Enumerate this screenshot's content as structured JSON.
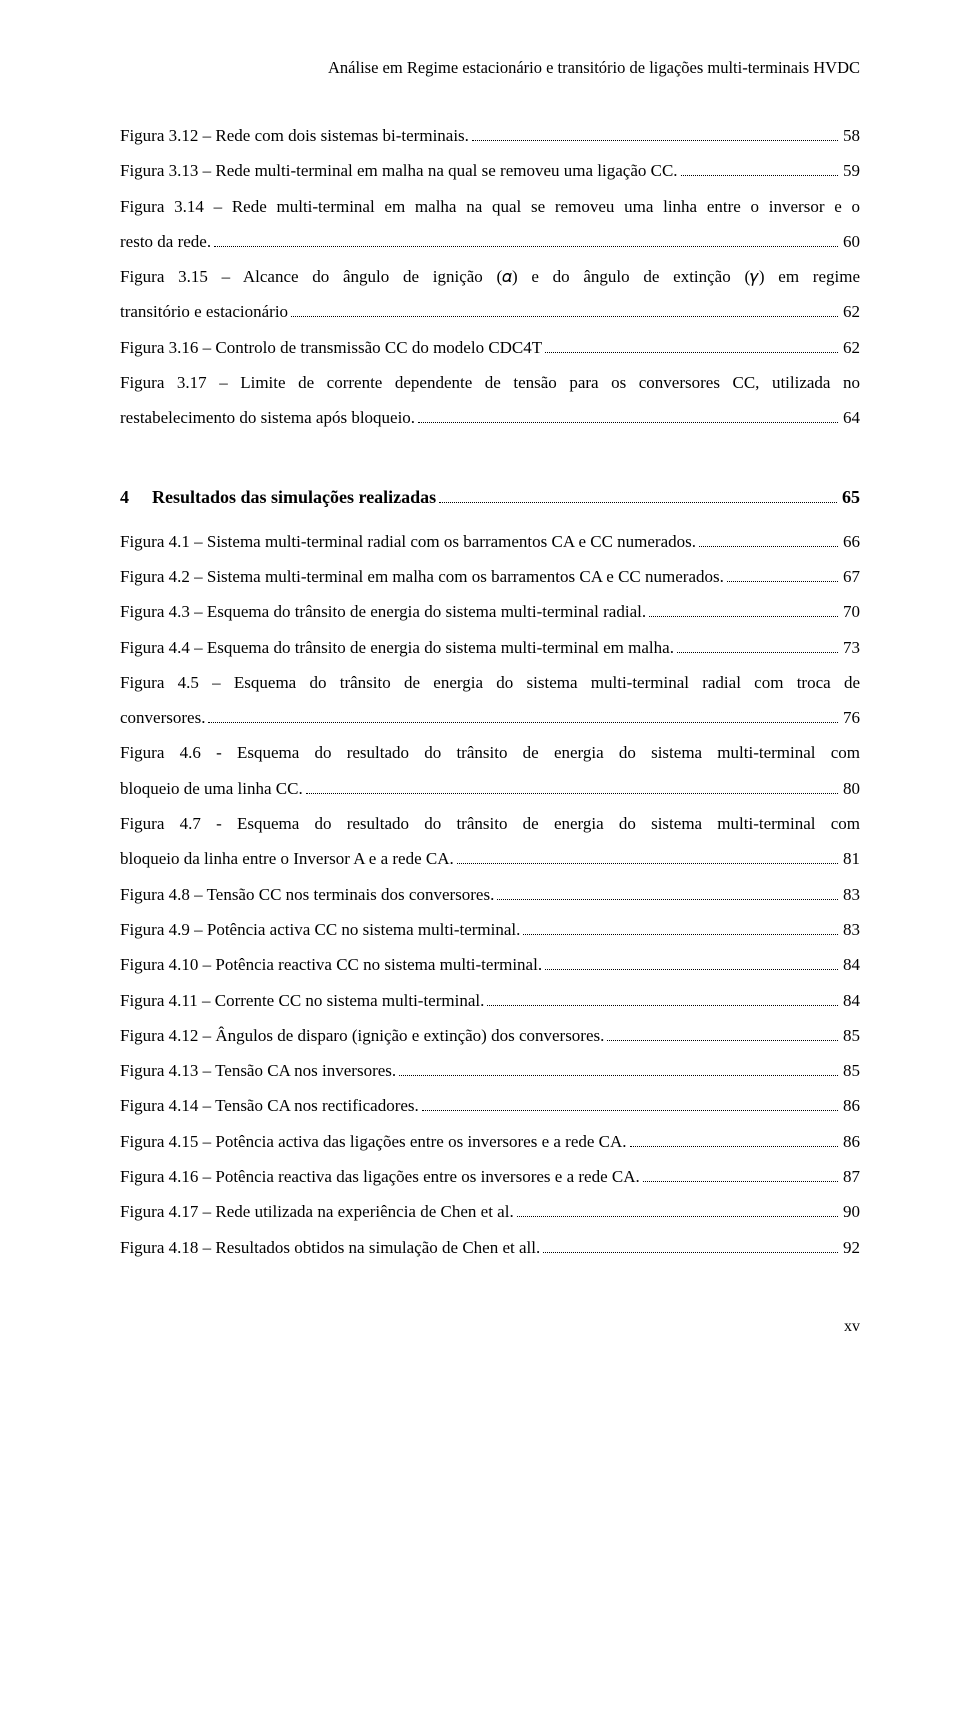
{
  "header": {
    "running_title": "Análise em Regime estacionário e transitório de ligações multi-terminais HVDC"
  },
  "section3_tail": [
    {
      "label": "Figura 3.12 – Rede com dois sistemas bi-terminais. ",
      "page": "58"
    },
    {
      "label": "Figura 3.13 – Rede multi-terminal em malha na qual se removeu uma ligação CC. ",
      "page": "59"
    },
    {
      "wrap1": "Figura 3.14 – Rede multi-terminal em malha na qual se removeu uma linha entre o inversor e o",
      "wrap2": "resto da rede. ",
      "page": "60"
    },
    {
      "wrap1": "Figura 3.15 – Alcance do ângulo de ignição (𝛼) e do ângulo de extinção (𝛾) em regime",
      "wrap2": "transitório e estacionário ",
      "page": "62"
    },
    {
      "label": "Figura 3.16 – Controlo de transmissão CC do modelo CDC4T ",
      "page": "62"
    },
    {
      "wrap1": "Figura 3.17 – Limite de corrente dependente de tensão para os conversores CC, utilizada no",
      "wrap2": "restabelecimento do sistema após bloqueio. ",
      "page": "64"
    }
  ],
  "section4": {
    "number": "4",
    "title": "Resultados das simulações realizadas",
    "page": "65"
  },
  "section4_items": [
    {
      "label": "Figura 4.1 – Sistema multi-terminal radial com os barramentos CA e CC numerados. ",
      "page": "66"
    },
    {
      "label": "Figura 4.2 – Sistema multi-terminal em malha com os barramentos CA e CC numerados. ",
      "page": "67"
    },
    {
      "label": "Figura 4.3 – Esquema do trânsito de energia do sistema multi-terminal radial. ",
      "page": "70"
    },
    {
      "label": "Figura 4.4 – Esquema do trânsito de energia do sistema multi-terminal em malha. ",
      "page": "73"
    },
    {
      "wrap1": "Figura 4.5 – Esquema do trânsito de energia do sistema multi-terminal radial com troca de",
      "wrap2": "conversores. ",
      "page": "76"
    },
    {
      "wrap1": "Figura 4.6 - Esquema do resultado do trânsito de energia do sistema multi-terminal com",
      "wrap2": "bloqueio de uma linha CC. ",
      "page": "80"
    },
    {
      "wrap1": "Figura 4.7 - Esquema do resultado do trânsito de energia do sistema multi-terminal com",
      "wrap2": "bloqueio da linha entre o Inversor A e a rede CA. ",
      "page": "81"
    },
    {
      "label": "Figura 4.8 – Tensão CC nos terminais dos conversores. ",
      "page": "83"
    },
    {
      "label": "Figura 4.9 – Potência activa CC no sistema multi-terminal. ",
      "page": "83"
    },
    {
      "label": "Figura 4.10 – Potência reactiva CC no sistema multi-terminal. ",
      "page": "84"
    },
    {
      "label": "Figura 4.11 – Corrente CC no sistema multi-terminal. ",
      "page": "84"
    },
    {
      "label": "Figura 4.12 – Ângulos de disparo (ignição e extinção) dos conversores. ",
      "page": "85"
    },
    {
      "label": "Figura 4.13 – Tensão CA nos inversores. ",
      "page": "85"
    },
    {
      "label": "Figura 4.14 – Tensão CA nos rectificadores. ",
      "page": "86"
    },
    {
      "label": "Figura 4.15 – Potência activa das ligações entre os inversores e a rede CA. ",
      "page": "86"
    },
    {
      "label": "Figura 4.16 – Potência reactiva das ligações entre os inversores e a rede CA. ",
      "page": "87"
    },
    {
      "label": "Figura 4.17 – Rede utilizada na experiência de Chen et al. ",
      "page": "90"
    },
    {
      "label": "Figura 4.18 – Resultados obtidos na simulação de Chen et all. ",
      "page": "92"
    }
  ],
  "footer": {
    "page_number": "xv"
  }
}
